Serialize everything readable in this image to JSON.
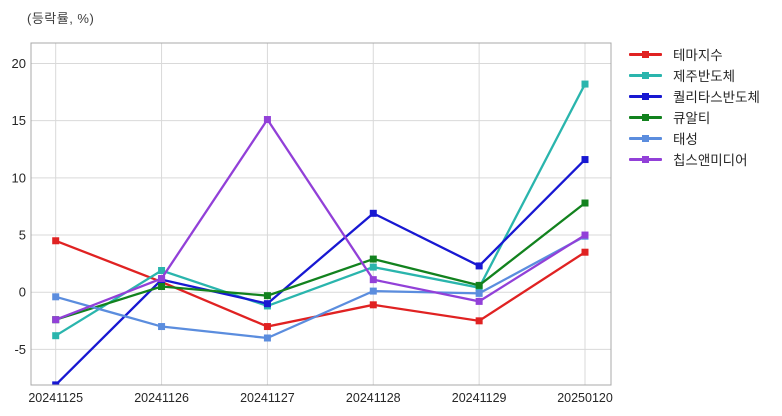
{
  "title": "(등락률, %)",
  "chart_data": {
    "type": "line",
    "title": "(등락률, %)",
    "xlabel": "",
    "ylabel": "등락률 (%)",
    "x": [
      "20241125",
      "20241126",
      "20241127",
      "20241128",
      "20241129",
      "20250120"
    ],
    "y_ticks": [
      20,
      15,
      10,
      5,
      0,
      -5
    ],
    "ylim": [
      -8.11,
      21.79
    ],
    "grid": true,
    "marker": "square",
    "legend_position": "right",
    "series": [
      {
        "name": "테마지수",
        "color": "#e02222",
        "values": [
          4.5,
          0.9,
          -3.0,
          -1.1,
          -2.5,
          3.5
        ]
      },
      {
        "name": "제주반도체",
        "color": "#2ab5ad",
        "values": [
          -3.8,
          1.9,
          -1.2,
          2.2,
          0.4,
          18.2
        ]
      },
      {
        "name": "퀄리타스반도체",
        "color": "#1818d2",
        "values": [
          -8.1,
          1.1,
          -1.0,
          6.9,
          2.3,
          11.6
        ]
      },
      {
        "name": "큐알티",
        "color": "#12821e",
        "values": [
          -2.4,
          0.5,
          -0.3,
          2.9,
          0.6,
          7.8
        ]
      },
      {
        "name": "태성",
        "color": "#5b8dde",
        "values": [
          -0.4,
          -3.0,
          -4.0,
          0.1,
          -0.1,
          4.9
        ]
      },
      {
        "name": "칩스앤미디어",
        "color": "#9240d8",
        "values": [
          -2.4,
          1.2,
          15.1,
          1.1,
          -0.8,
          5.0
        ]
      }
    ],
    "styles": {
      "grid_color": "#d9d9d9",
      "border_color": "#a8a8a8",
      "tick_label_color": "#262626"
    }
  }
}
